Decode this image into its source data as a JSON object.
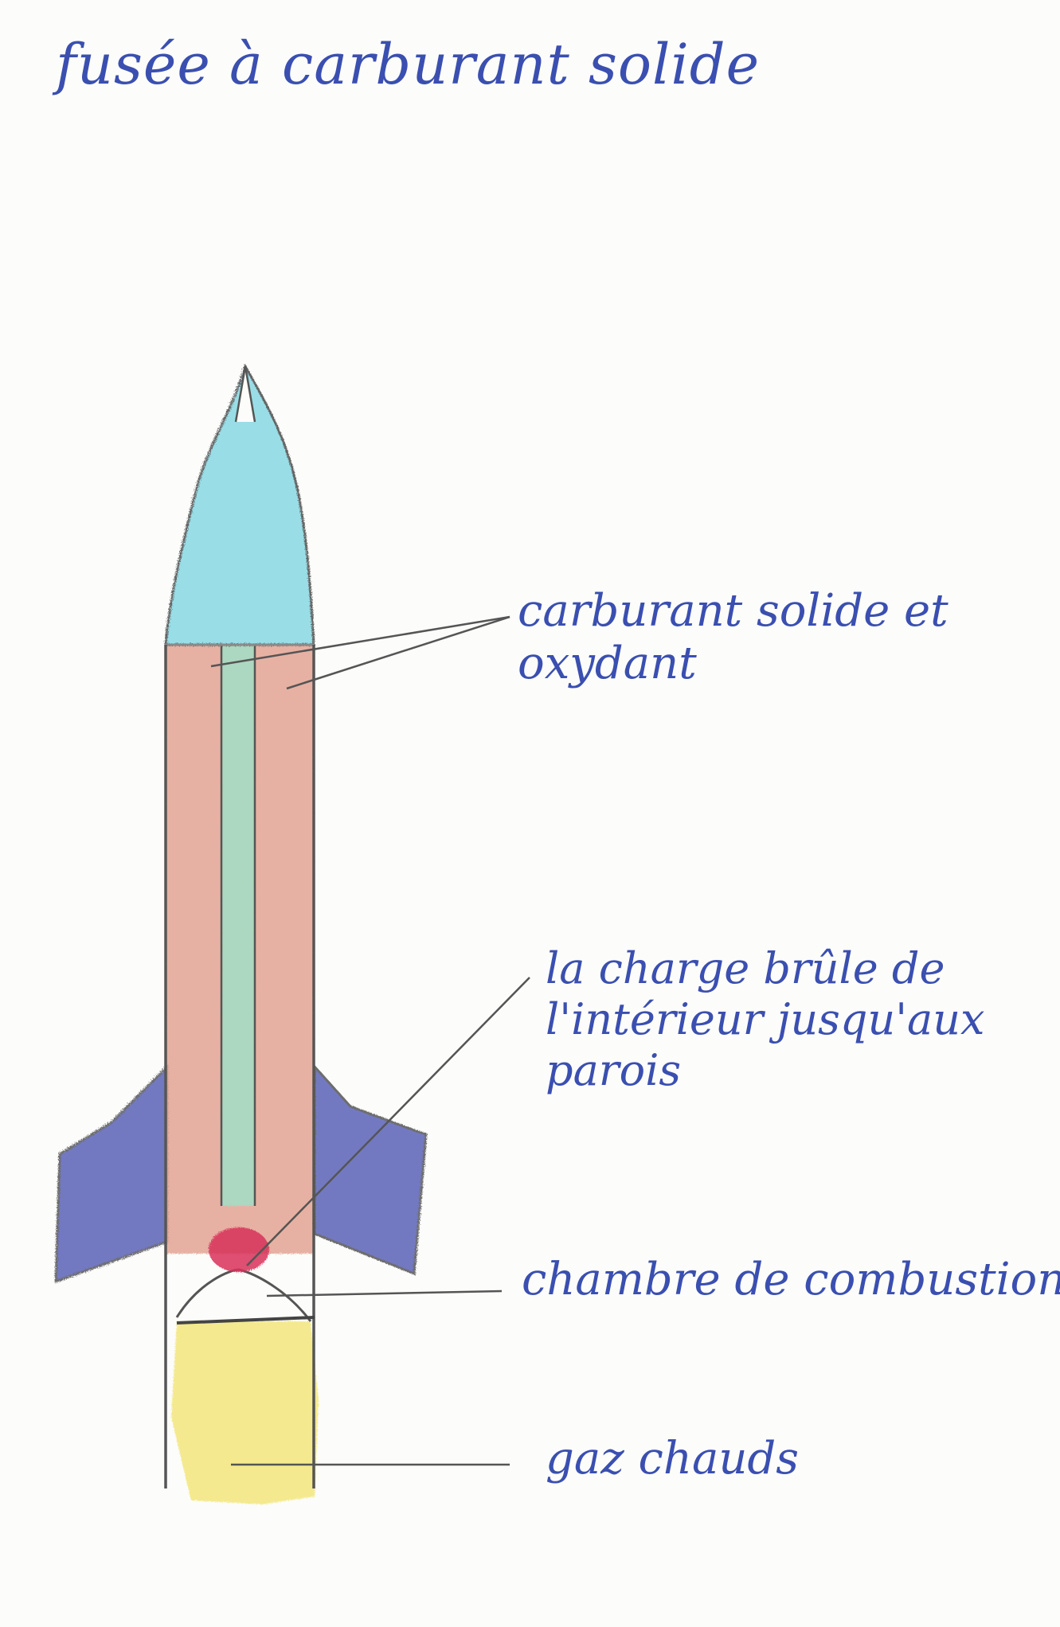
{
  "title": "fusée à carburant solide",
  "labels": {
    "fuel": {
      "line1": "carburant solide et",
      "line2": "oxydant"
    },
    "burn": {
      "line1": "la charge brûle de",
      "line2": "l'intérieur jusqu'aux",
      "line3": "parois"
    },
    "chamber": "chambre de combustion",
    "gas": "gaz chauds"
  },
  "colors": {
    "ink": "#3a4fb0",
    "nose": "#8fdbe6",
    "propellant": "#e3a595",
    "core": "#a6dcc4",
    "fins": "#5b64b8",
    "flame": "#f2e36a",
    "ignition": "#d9325a",
    "outline": "#555555"
  }
}
